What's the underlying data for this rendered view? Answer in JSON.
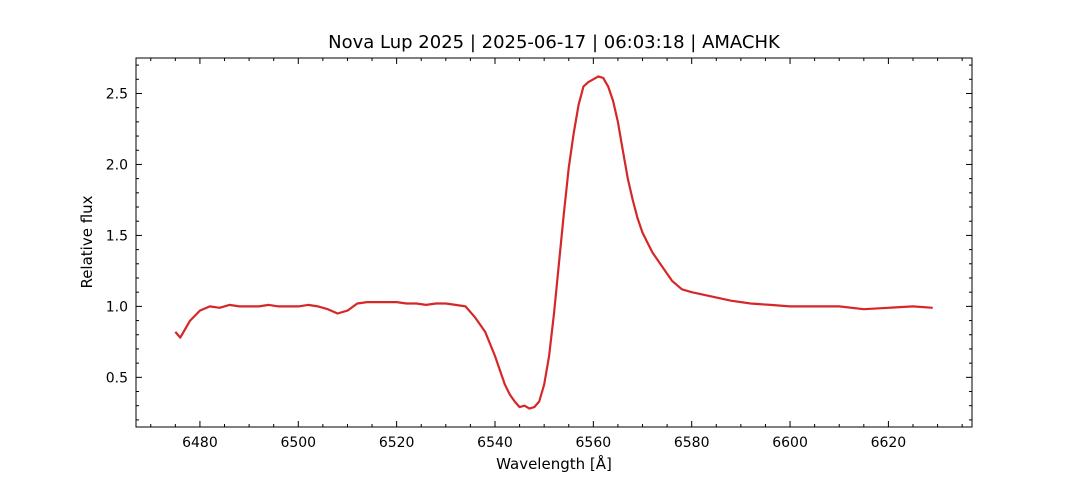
{
  "chart_data": {
    "type": "line",
    "title": "Nova Lup 2025 | 2025-06-17 | 06:03:18 | AMACHK",
    "xlabel": "Wavelength [Å]",
    "ylabel": "Relative flux",
    "xlim": [
      6467,
      6637
    ],
    "ylim": [
      0.15,
      2.75
    ],
    "x_ticks": [
      6480,
      6500,
      6520,
      6540,
      6560,
      6580,
      6600,
      6620
    ],
    "x_tick_labels": [
      "6480",
      "6500",
      "6520",
      "6540",
      "6560",
      "6580",
      "6600",
      "6620"
    ],
    "y_ticks": [
      0.5,
      1.0,
      1.5,
      2.0,
      2.5
    ],
    "y_tick_labels": [
      "0.5",
      "1.0",
      "1.5",
      "2.0",
      "2.5"
    ],
    "grid": false,
    "series": [
      {
        "color": "#d62728",
        "x": [
          6475,
          6476,
          6478,
          6480,
          6482,
          6484,
          6486,
          6488,
          6490,
          6492,
          6494,
          6496,
          6498,
          6500,
          6502,
          6504,
          6506,
          6508,
          6510,
          6512,
          6514,
          6516,
          6518,
          6520,
          6522,
          6524,
          6526,
          6528,
          6530,
          6532,
          6534,
          6536,
          6538,
          6540,
          6542,
          6543,
          6544,
          6545,
          6546,
          6547,
          6548,
          6549,
          6550,
          6551,
          6552,
          6553,
          6554,
          6555,
          6556,
          6557,
          6558,
          6559,
          6560,
          6561,
          6562,
          6563,
          6564,
          6565,
          6566,
          6567,
          6568,
          6569,
          6570,
          6571,
          6572,
          6574,
          6576,
          6578,
          6580,
          6584,
          6588,
          6592,
          6596,
          6600,
          6605,
          6610,
          6615,
          6620,
          6625,
          6629
        ],
        "y": [
          0.82,
          0.78,
          0.9,
          0.97,
          1.0,
          0.99,
          1.01,
          1.0,
          1.0,
          1.0,
          1.01,
          1.0,
          1.0,
          1.0,
          1.01,
          1.0,
          0.98,
          0.95,
          0.97,
          1.02,
          1.03,
          1.03,
          1.03,
          1.03,
          1.02,
          1.02,
          1.01,
          1.02,
          1.02,
          1.01,
          1.0,
          0.92,
          0.82,
          0.65,
          0.45,
          0.38,
          0.33,
          0.29,
          0.3,
          0.28,
          0.29,
          0.33,
          0.45,
          0.65,
          0.95,
          1.3,
          1.65,
          1.98,
          2.22,
          2.42,
          2.55,
          2.58,
          2.6,
          2.62,
          2.61,
          2.55,
          2.45,
          2.3,
          2.1,
          1.9,
          1.75,
          1.62,
          1.52,
          1.45,
          1.38,
          1.28,
          1.18,
          1.12,
          1.1,
          1.07,
          1.04,
          1.02,
          1.01,
          1.0,
          1.0,
          1.0,
          0.98,
          0.99,
          1.0,
          0.99
        ]
      }
    ]
  }
}
